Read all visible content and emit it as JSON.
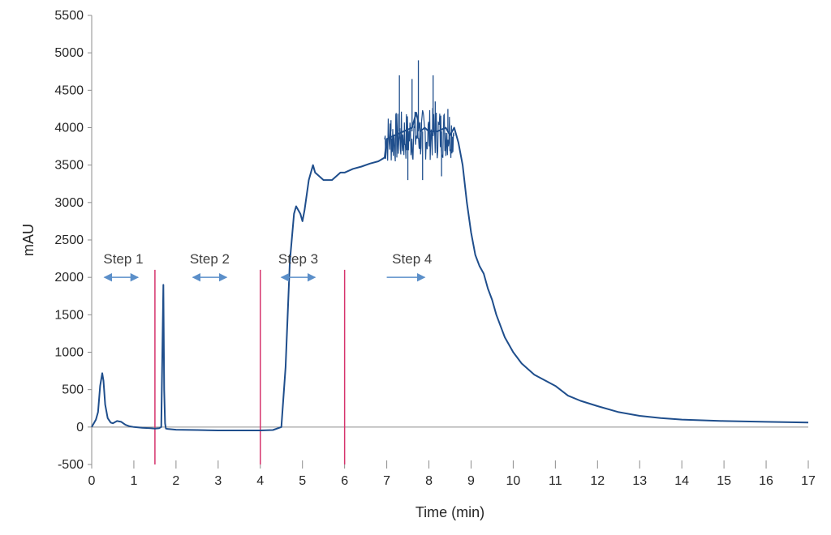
{
  "chart_data": {
    "type": "line",
    "title": "",
    "xlabel": "Time (min)",
    "ylabel": "mAU",
    "xlim": [
      0,
      17
    ],
    "ylim": [
      -500,
      5500
    ],
    "x_ticks": [
      0,
      1,
      2,
      3,
      4,
      5,
      6,
      7,
      8,
      9,
      10,
      11,
      12,
      13,
      14,
      15,
      16,
      17
    ],
    "y_ticks": [
      -500,
      0,
      500,
      1000,
      1500,
      2000,
      2500,
      3000,
      3500,
      4000,
      4500,
      5000,
      5500
    ],
    "grid": false,
    "legend": "none",
    "colors": {
      "series": "#1f4e8c",
      "dividers": "#d6336c",
      "arrows": "#5b8fc9"
    },
    "series": [
      {
        "x": [
          0,
          0.05,
          0.1,
          0.15,
          0.2,
          0.25,
          0.28,
          0.32,
          0.38,
          0.45,
          0.5,
          0.6,
          0.7,
          0.8,
          0.9,
          1.0,
          1.2,
          1.4,
          1.5,
          1.6,
          1.65,
          1.7,
          1.72,
          1.74,
          1.76,
          1.8,
          1.9,
          2.0,
          2.5,
          3.0,
          3.5,
          4.0,
          4.3,
          4.5,
          4.6,
          4.65,
          4.7,
          4.8,
          4.85,
          4.9,
          4.95,
          5.0,
          5.05,
          5.1,
          5.15,
          5.2,
          5.25,
          5.3,
          5.4,
          5.5,
          5.6,
          5.7,
          5.8,
          5.9,
          6.0,
          6.2,
          6.4,
          6.6,
          6.8,
          6.95,
          7.0,
          7.2,
          7.4,
          7.6,
          7.7,
          7.8,
          7.9,
          8.0,
          8.2,
          8.4,
          8.5,
          8.6,
          8.7,
          8.8,
          8.9,
          9.0,
          9.1,
          9.2,
          9.3,
          9.4,
          9.5,
          9.6,
          9.8,
          10.0,
          10.2,
          10.5,
          11.0,
          11.3,
          11.6,
          12.0,
          12.5,
          13.0,
          13.5,
          14.0,
          15.0,
          16.0,
          17.0
        ],
        "y": [
          0,
          50,
          100,
          200,
          550,
          720,
          620,
          300,
          120,
          60,
          50,
          80,
          70,
          30,
          10,
          0,
          -10,
          -15,
          -20,
          -15,
          0,
          1900,
          500,
          50,
          -20,
          -25,
          -30,
          -35,
          -40,
          -45,
          -45,
          -45,
          -40,
          0,
          800,
          1500,
          2200,
          2850,
          2950,
          2900,
          2850,
          2750,
          2900,
          3100,
          3300,
          3400,
          3500,
          3400,
          3350,
          3300,
          3300,
          3300,
          3350,
          3400,
          3400,
          3450,
          3480,
          3520,
          3550,
          3600,
          3850,
          3900,
          3950,
          4000,
          4200,
          3950,
          4000,
          3950,
          3950,
          4000,
          3900,
          4000,
          3800,
          3500,
          3000,
          2600,
          2300,
          2150,
          2050,
          1850,
          1700,
          1500,
          1200,
          1000,
          850,
          700,
          550,
          420,
          350,
          280,
          200,
          150,
          120,
          100,
          80,
          70,
          60
        ],
        "spikes": [
          [
            7.3,
            4700
          ],
          [
            7.6,
            4650
          ],
          [
            7.75,
            4900
          ],
          [
            8.1,
            4700
          ],
          [
            7.5,
            3300
          ],
          [
            7.85,
            3300
          ],
          [
            8.3,
            3350
          ],
          [
            8.15,
            4350
          ],
          [
            7.1,
            4100
          ],
          [
            8.45,
            4250
          ]
        ]
      }
    ],
    "dividers": [
      1.5,
      4,
      6
    ],
    "annotations": [
      {
        "text": "Step 1",
        "x": 0.75,
        "y": 2250,
        "arrow": [
          0.3,
          1.1,
          2000
        ],
        "two_way": true
      },
      {
        "text": "Step 2",
        "x": 2.8,
        "y": 2250,
        "arrow": [
          2.4,
          3.2,
          2000
        ],
        "two_way": true
      },
      {
        "text": "Step 3",
        "x": 4.9,
        "y": 2250,
        "arrow": [
          4.5,
          5.3,
          2000
        ],
        "two_way": true
      },
      {
        "text": "Step 4",
        "x": 7.6,
        "y": 2250,
        "arrow": [
          7.0,
          7.9,
          2000
        ],
        "two_way": false
      }
    ]
  }
}
